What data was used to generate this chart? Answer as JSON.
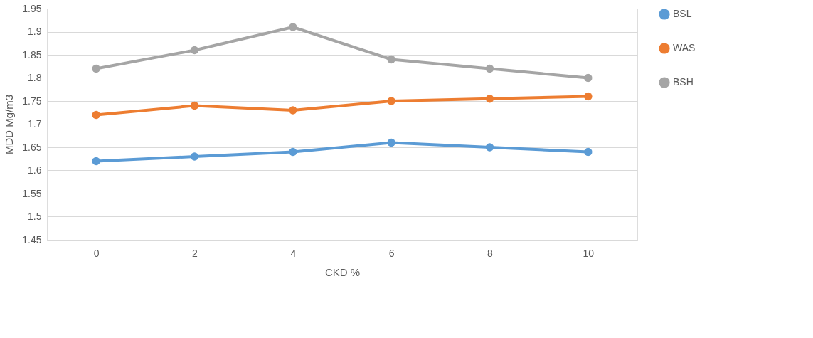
{
  "chart_data": {
    "type": "line",
    "xlabel": "CKD %",
    "ylabel": "MDD Mg/m3",
    "categories": [
      "0",
      "2",
      "4",
      "6",
      "8",
      "10"
    ],
    "series": [
      {
        "name": "BSL",
        "color": "#5b9bd5",
        "values": [
          1.62,
          1.63,
          1.64,
          1.66,
          1.65,
          1.64
        ]
      },
      {
        "name": "WAS",
        "color": "#ed7d31",
        "values": [
          1.72,
          1.74,
          1.73,
          1.75,
          1.755,
          1.76
        ]
      },
      {
        "name": "BSH",
        "color": "#a5a5a5",
        "values": [
          1.82,
          1.86,
          1.91,
          1.84,
          1.82,
          1.8
        ]
      }
    ],
    "ylim": [
      1.45,
      1.95
    ],
    "yticks": [
      1.45,
      1.5,
      1.55,
      1.6,
      1.65,
      1.7,
      1.75,
      1.8,
      1.85,
      1.9,
      1.95
    ],
    "grid": "y",
    "legend": "right",
    "marker": "circle",
    "line_style": "solid"
  }
}
